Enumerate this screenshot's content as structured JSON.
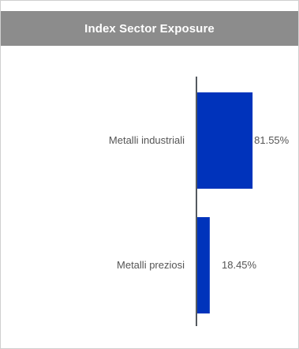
{
  "panel": {
    "title": "Index Sector Exposure"
  },
  "colors": {
    "header_bg": "#8c8c8c",
    "bar": "#0033bb",
    "axis": "#555a5f",
    "label_text": "#555555"
  },
  "chart_data": {
    "type": "bar",
    "orientation": "horizontal",
    "title": "Index Sector Exposure",
    "categories": [
      "Metalli industriali",
      "Metalli preziosi"
    ],
    "values": [
      81.55,
      18.45
    ],
    "value_labels": [
      "81.55%",
      "18.45%"
    ],
    "xlim": [
      0,
      100
    ],
    "unit": "%",
    "grid": false,
    "legend": "none"
  }
}
